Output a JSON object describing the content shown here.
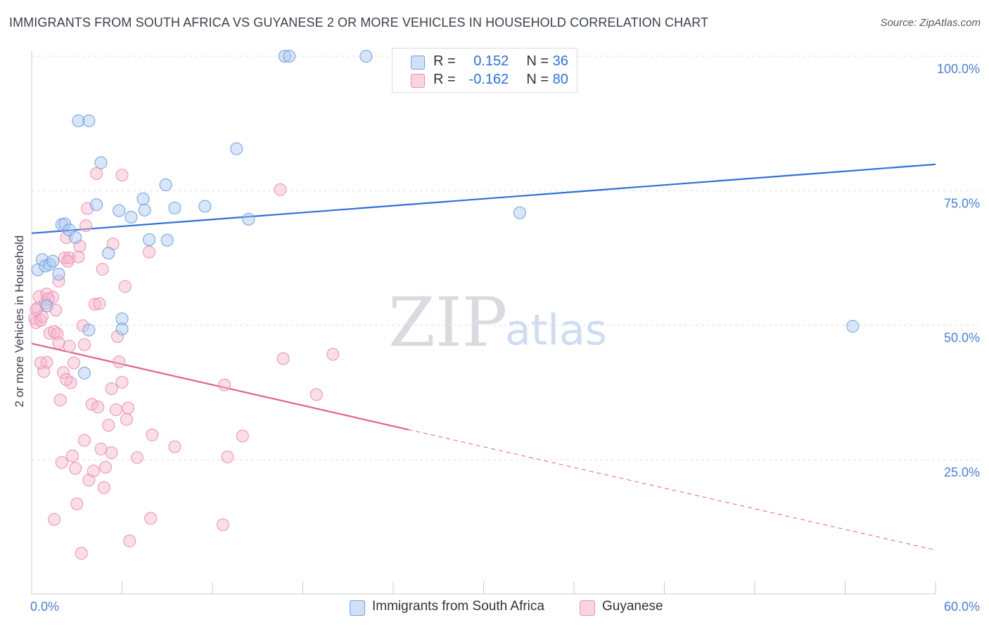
{
  "header": {
    "title": "IMMIGRANTS FROM SOUTH AFRICA VS GUYANESE 2 OR MORE VEHICLES IN HOUSEHOLD CORRELATION CHART",
    "source": "Source: ZipAtlas.com"
  },
  "watermark": {
    "zip": "ZIP",
    "atlas": "atlas"
  },
  "legend": {
    "r_label": "R =",
    "n_label": "N =",
    "rows": [
      {
        "r": "0.152",
        "n": "36",
        "color": "#a9c8f0"
      },
      {
        "r": "-0.162",
        "n": "80",
        "color": "#f5b6c9"
      }
    ]
  },
  "bottom_legend": {
    "items": [
      {
        "label": "Immigrants from South Africa",
        "color": "#a9c8f0"
      },
      {
        "label": "Guyanese",
        "color": "#f5b6c9"
      }
    ]
  },
  "colors": {
    "blue_line": "#2f6fd6",
    "pink_line": "#e0628e",
    "blue_fill": "#a9c8f0",
    "pink_fill": "#f5b6c9",
    "tick_text": "#4a7fd0"
  },
  "chart_data": {
    "type": "scatter",
    "title": "IMMIGRANTS FROM SOUTH AFRICA VS GUYANESE 2 OR MORE VEHICLES IN HOUSEHOLD CORRELATION CHART",
    "xlabel": "",
    "ylabel": "2 or more Vehicles in Household",
    "xlim": [
      0,
      60
    ],
    "ylim": [
      0,
      105
    ],
    "x_tick_labels": [
      {
        "value": 0,
        "label": "0.0%"
      },
      {
        "value": 60,
        "label": "60.0%"
      }
    ],
    "y_tick_labels": [
      {
        "value": 25,
        "label": "25.0%"
      },
      {
        "value": 50,
        "label": "50.0%"
      },
      {
        "value": 75,
        "label": "75.0%"
      },
      {
        "value": 100,
        "label": "100.0%"
      }
    ],
    "grid": true,
    "legend_position": "top-center",
    "series": [
      {
        "name": "Immigrants from South Africa",
        "color": "#a9c8f0",
        "trend": {
          "x": [
            0,
            60
          ],
          "y": [
            67.1,
            79.9
          ],
          "style": "solid"
        },
        "points": [
          [
            0.4,
            60.3
          ],
          [
            0.7,
            62.2
          ],
          [
            0.9,
            61.0
          ],
          [
            1.0,
            53.6
          ],
          [
            1.2,
            61.3
          ],
          [
            1.4,
            61.9
          ],
          [
            1.8,
            59.5
          ],
          [
            2.0,
            68.7
          ],
          [
            2.2,
            68.8
          ],
          [
            2.5,
            67.7
          ],
          [
            2.9,
            66.3
          ],
          [
            3.1,
            88.0
          ],
          [
            3.8,
            88.0
          ],
          [
            3.8,
            49.1
          ],
          [
            3.5,
            41.1
          ],
          [
            4.3,
            72.4
          ],
          [
            4.6,
            80.2
          ],
          [
            5.1,
            63.4
          ],
          [
            5.8,
            71.3
          ],
          [
            6.0,
            51.2
          ],
          [
            6.0,
            49.3
          ],
          [
            6.6,
            70.1
          ],
          [
            7.4,
            73.5
          ],
          [
            7.5,
            71.4
          ],
          [
            7.8,
            65.9
          ],
          [
            8.9,
            76.1
          ],
          [
            9.0,
            65.8
          ],
          [
            9.5,
            71.8
          ],
          [
            11.5,
            72.1
          ],
          [
            13.6,
            82.8
          ],
          [
            14.4,
            69.7
          ],
          [
            16.8,
            100.0
          ],
          [
            17.1,
            100.0
          ],
          [
            22.2,
            100.0
          ],
          [
            32.4,
            70.9
          ],
          [
            54.5,
            49.8
          ]
        ]
      },
      {
        "name": "Guyanese",
        "color": "#f5b6c9",
        "trend": {
          "x": [
            0,
            25
          ],
          "y": [
            46.6,
            30.6
          ],
          "dashed_to": {
            "x": 60,
            "y": 8.2
          },
          "style": "solid-then-dashed"
        },
        "points": [
          [
            0.2,
            51.3
          ],
          [
            0.3,
            50.5
          ],
          [
            0.4,
            53.2
          ],
          [
            0.5,
            55.3
          ],
          [
            0.6,
            50.9
          ],
          [
            0.7,
            51.6
          ],
          [
            0.9,
            54.1
          ],
          [
            1.0,
            55.8
          ],
          [
            1.0,
            43.1
          ],
          [
            1.2,
            48.5
          ],
          [
            1.4,
            55.2
          ],
          [
            1.5,
            48.8
          ],
          [
            1.6,
            52.8
          ],
          [
            1.7,
            48.4
          ],
          [
            1.8,
            58.2
          ],
          [
            1.8,
            46.7
          ],
          [
            1.9,
            36.1
          ],
          [
            2.0,
            24.5
          ],
          [
            2.1,
            41.2
          ],
          [
            2.2,
            62.5
          ],
          [
            2.3,
            66.3
          ],
          [
            2.5,
            62.5
          ],
          [
            2.5,
            46.1
          ],
          [
            2.6,
            39.3
          ],
          [
            2.7,
            25.7
          ],
          [
            2.8,
            43.0
          ],
          [
            2.9,
            23.4
          ],
          [
            3.0,
            16.8
          ],
          [
            3.1,
            62.7
          ],
          [
            3.2,
            64.7
          ],
          [
            3.3,
            7.6
          ],
          [
            3.4,
            49.9
          ],
          [
            3.5,
            46.4
          ],
          [
            3.5,
            28.6
          ],
          [
            3.6,
            68.5
          ],
          [
            3.7,
            71.7
          ],
          [
            3.8,
            21.2
          ],
          [
            4.0,
            35.3
          ],
          [
            4.1,
            22.9
          ],
          [
            4.2,
            53.9
          ],
          [
            4.3,
            78.2
          ],
          [
            4.4,
            34.8
          ],
          [
            4.5,
            54.0
          ],
          [
            4.6,
            27.0
          ],
          [
            4.7,
            60.4
          ],
          [
            4.8,
            19.8
          ],
          [
            4.9,
            23.6
          ],
          [
            5.1,
            31.4
          ],
          [
            5.3,
            26.3
          ],
          [
            5.3,
            38.2
          ],
          [
            5.4,
            65.1
          ],
          [
            5.6,
            34.3
          ],
          [
            5.7,
            47.9
          ],
          [
            5.8,
            43.2
          ],
          [
            6.0,
            77.9
          ],
          [
            6.0,
            39.4
          ],
          [
            6.2,
            57.2
          ],
          [
            6.3,
            32.5
          ],
          [
            6.4,
            34.6
          ],
          [
            6.5,
            9.9
          ],
          [
            7.0,
            25.4
          ],
          [
            7.8,
            63.6
          ],
          [
            7.9,
            14.1
          ],
          [
            8.0,
            29.6
          ],
          [
            9.5,
            27.4
          ],
          [
            12.7,
            12.9
          ],
          [
            12.8,
            38.9
          ],
          [
            13.0,
            25.5
          ],
          [
            14.0,
            29.4
          ],
          [
            16.5,
            75.2
          ],
          [
            16.7,
            43.8
          ],
          [
            18.9,
            37.1
          ],
          [
            20.0,
            44.6
          ],
          [
            1.5,
            13.9
          ],
          [
            2.3,
            39.9
          ],
          [
            0.8,
            41.4
          ],
          [
            1.1,
            54.9
          ],
          [
            2.4,
            61.9
          ],
          [
            0.3,
            52.9
          ],
          [
            0.6,
            43.0
          ]
        ]
      }
    ]
  }
}
